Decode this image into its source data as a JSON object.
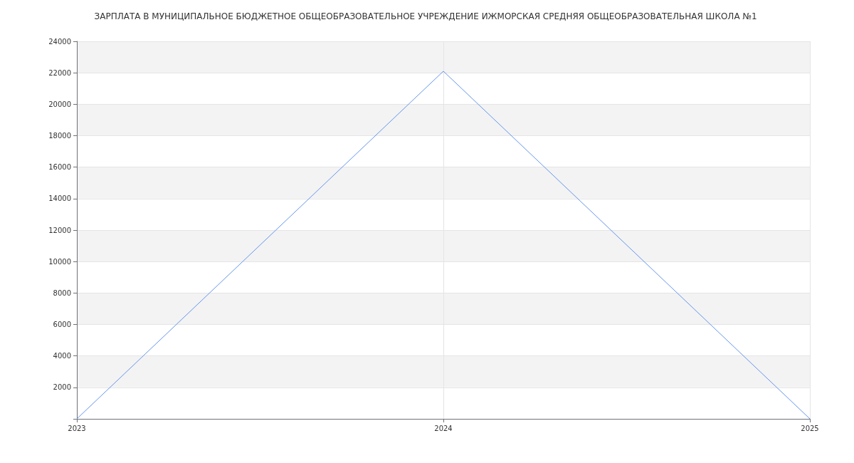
{
  "chart_data": {
    "type": "line",
    "title": "ЗАРПЛАТА В МУНИЦИПАЛЬНОЕ БЮДЖЕТНОЕ ОБЩЕОБРАЗОВАТЕЛЬНОЕ УЧРЕЖДЕНИЕ ИЖМОРСКАЯ СРЕДНЯЯ ОБЩЕОБРАЗОВАТЕЛЬНАЯ ШКОЛА №1",
    "categories": [
      "2023",
      "2024",
      "2025"
    ],
    "series": [
      {
        "color": "#6495ed",
        "values": [
          0,
          22100,
          0
        ]
      }
    ],
    "ylim": [
      0,
      24000
    ],
    "yticks": [
      2000,
      4000,
      6000,
      8000,
      10000,
      12000,
      14000,
      16000,
      18000,
      20000,
      22000,
      24000
    ],
    "grid": true,
    "marker": "none",
    "line_style": "solid"
  }
}
